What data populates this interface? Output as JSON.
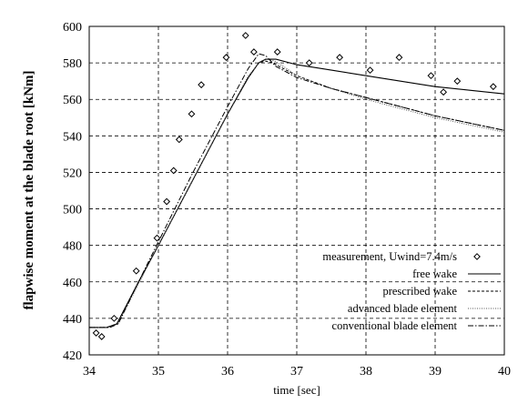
{
  "chart_data": {
    "type": "line",
    "xlabel": "time [sec]",
    "ylabel": "flapwise moment at the blade root [kNm]",
    "xlim": [
      34,
      40
    ],
    "ylim": [
      420,
      600
    ],
    "xticks": [
      "34",
      "35",
      "36",
      "37",
      "38",
      "39",
      "40"
    ],
    "yticks": [
      "420",
      "440",
      "460",
      "480",
      "500",
      "520",
      "540",
      "560",
      "580",
      "600"
    ],
    "grid": true,
    "legend_position": "lower-right",
    "series": [
      {
        "name": "measurement,  Uwind=7.4m/s",
        "style": "diamond-markers",
        "x": [
          34.1,
          34.18,
          34.36,
          34.68,
          34.98,
          35.12,
          35.22,
          35.3,
          35.48,
          35.62,
          35.98,
          36.26,
          36.38,
          36.72,
          37.18,
          37.62,
          38.06,
          38.48,
          38.94,
          39.12,
          39.32,
          39.84
        ],
        "y": [
          432,
          430,
          440,
          466,
          484,
          504,
          521,
          538,
          552,
          568,
          583,
          595,
          586,
          586,
          580,
          583,
          576,
          583,
          573,
          564,
          570,
          567
        ]
      },
      {
        "name": "free wake",
        "style": "solid",
        "x": [
          34.0,
          34.25,
          34.4,
          34.7,
          35.0,
          35.5,
          36.0,
          36.3,
          36.45,
          36.55,
          36.7,
          37.0,
          37.5,
          38.0,
          38.5,
          39.0,
          39.5,
          40.0
        ],
        "y": [
          435,
          435,
          437,
          459,
          480,
          516,
          552,
          572,
          580,
          582,
          582,
          579,
          576,
          573,
          570,
          567,
          565,
          563
        ]
      },
      {
        "name": "prescribed wake",
        "style": "dashed",
        "x": [
          34.0,
          34.25,
          34.4,
          34.7,
          35.0,
          35.5,
          36.0,
          36.3,
          36.45,
          36.55,
          36.65,
          36.8,
          37.0,
          37.5,
          38.0,
          38.5,
          39.0,
          39.5,
          40.0
        ],
        "y": [
          435,
          435,
          437,
          459,
          480,
          516,
          552,
          572,
          580,
          581,
          580,
          577,
          573,
          566,
          561,
          556,
          551,
          547,
          543
        ]
      },
      {
        "name": "advanced blade element",
        "style": "dotted",
        "x": [
          34.0,
          34.28,
          34.42,
          34.7,
          35.0,
          35.5,
          36.0,
          36.3,
          36.48,
          36.58,
          36.68,
          36.85,
          37.0,
          37.5,
          38.0,
          38.5,
          39.0,
          39.5,
          40.0
        ],
        "y": [
          435,
          435,
          437,
          458,
          480,
          516,
          552,
          573,
          581,
          582,
          581,
          577,
          573,
          566,
          560,
          555,
          550,
          546,
          542
        ]
      },
      {
        "name": "conventional blade element",
        "style": "dash-dot",
        "x": [
          34.0,
          34.3,
          34.42,
          34.7,
          35.0,
          35.5,
          36.0,
          36.3,
          36.45,
          36.55,
          36.7,
          37.0,
          37.5,
          38.0,
          38.5,
          39.0,
          39.5,
          40.0
        ],
        "y": [
          435,
          435,
          437,
          459,
          482,
          520,
          556,
          577,
          585,
          584,
          578,
          572,
          566,
          561,
          556,
          551,
          547,
          543
        ]
      }
    ]
  }
}
